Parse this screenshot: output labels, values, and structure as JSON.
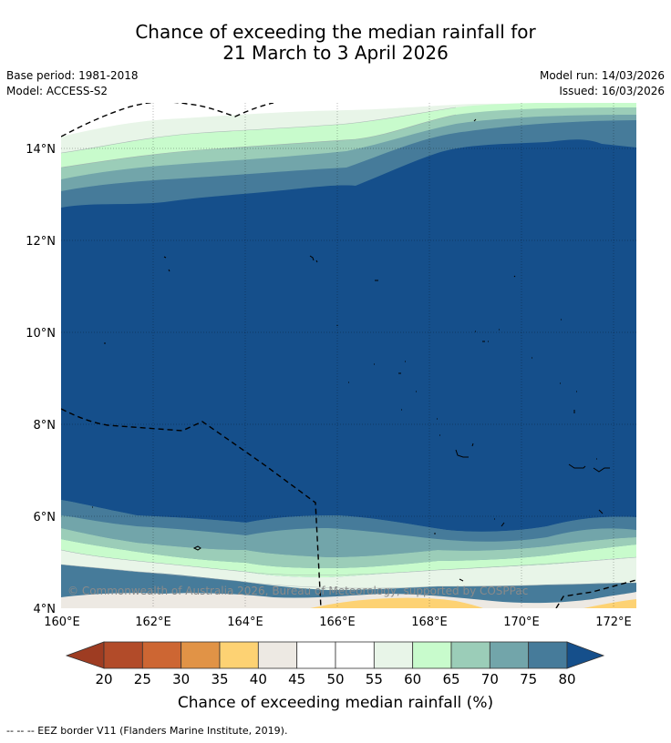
{
  "title": {
    "line1": "Chance of exceeding the median rainfall for",
    "line2": "21 March to 3 April 2026"
  },
  "meta": {
    "base_period": "Base period: 1981-2018",
    "model": "Model: ACCESS-S2",
    "model_run": "Model run: 14/03/2026",
    "issued": "Issued: 16/03/2026"
  },
  "map": {
    "lat_labels": [
      "14°N",
      "12°N",
      "10°N",
      "8°N",
      "6°N",
      "4°N"
    ],
    "lon_labels": [
      "160°E",
      "162°E",
      "164°E",
      "166°E",
      "168°E",
      "170°E",
      "172°E"
    ],
    "copyright": "© Commonwealth of Australia 2026, Bureau of Meteorology, supported by COSPPac",
    "colors": {
      "c80": "#154f8b",
      "c75": "#467b9a",
      "c70": "#72a5aa",
      "c65": "#9bcdb8",
      "c60": "#c8fbcc",
      "c55": "#e8f5e8",
      "c50": "#ffffff",
      "c45": "#ffffff",
      "c40": "#ede9e3",
      "c35": "#fdd273",
      "c30": "#e19346"
    }
  },
  "colorbar": {
    "ticks": [
      "20",
      "25",
      "30",
      "35",
      "40",
      "45",
      "50",
      "55",
      "60",
      "65",
      "70",
      "75",
      "80"
    ],
    "colors": [
      "#b24b29",
      "#cd6633",
      "#e19346",
      "#fdd273",
      "#ede9e3",
      "#ffffff",
      "#ffffff",
      "#e8f5e8",
      "#c8fbcc",
      "#9bcdb8",
      "#72a5aa",
      "#467b9a"
    ],
    "low_color": "#9e3c22",
    "high_color": "#154f8b",
    "label": "Chance of exceeding median rainfall (%)"
  },
  "footer": "--  --  -- EEZ border V11 (Flanders Marine Institute, 2019)."
}
